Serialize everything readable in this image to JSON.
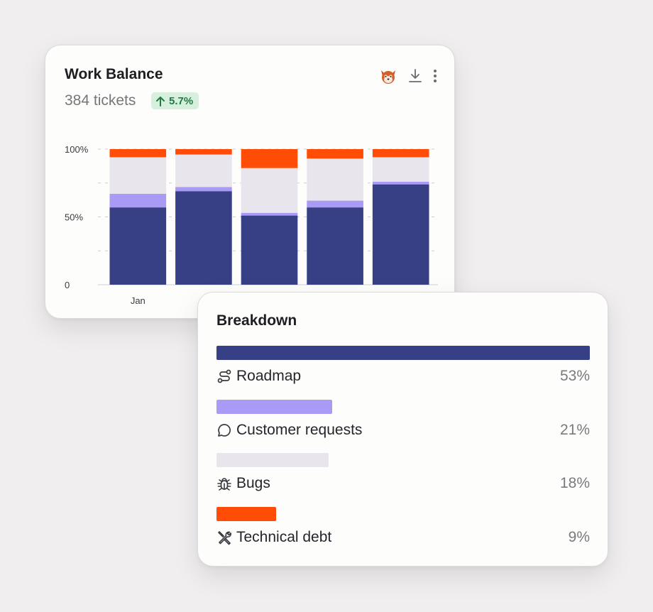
{
  "work_balance": {
    "title": "Work Balance",
    "tickets": "384 tickets",
    "change": "5.7%",
    "change_color": "#227a45",
    "actions": [
      "avatar-icon",
      "download-icon",
      "more-vertical-icon"
    ]
  },
  "chart_data": {
    "type": "bar",
    "stacked": true,
    "categories": [
      "Jan",
      "",
      "",
      "",
      ""
    ],
    "ylim": [
      0,
      100
    ],
    "yticks": [
      "0",
      "50%",
      "100%"
    ],
    "grid": true,
    "series": [
      {
        "name": "Roadmap",
        "color": "#373f85",
        "values": [
          57,
          69,
          51,
          57,
          74
        ]
      },
      {
        "name": "Customer requests",
        "color": "#a89af5",
        "values": [
          10,
          3,
          2,
          5,
          2
        ]
      },
      {
        "name": "Bugs",
        "color": "#e8e6ec",
        "values": [
          27,
          24,
          33,
          31,
          18
        ]
      },
      {
        "name": "Technical debt",
        "color": "#ff4d08",
        "values": [
          6,
          4,
          14,
          7,
          6
        ]
      }
    ]
  },
  "breakdown": {
    "title": "Breakdown",
    "items": [
      {
        "label": "Roadmap",
        "pct": "53%",
        "value": 100,
        "color": "#373f85",
        "icon": "route-icon"
      },
      {
        "label": "Customer requests",
        "pct": "21%",
        "value": 31,
        "color": "#a89af5",
        "icon": "chat-bubble-icon"
      },
      {
        "label": "Bugs",
        "pct": "18%",
        "value": 30,
        "color": "#e8e6ec",
        "icon": "bug-icon"
      },
      {
        "label": "Technical debt",
        "pct": "9%",
        "value": 16,
        "color": "#ff4d08",
        "icon": "wrench-icon"
      }
    ]
  }
}
